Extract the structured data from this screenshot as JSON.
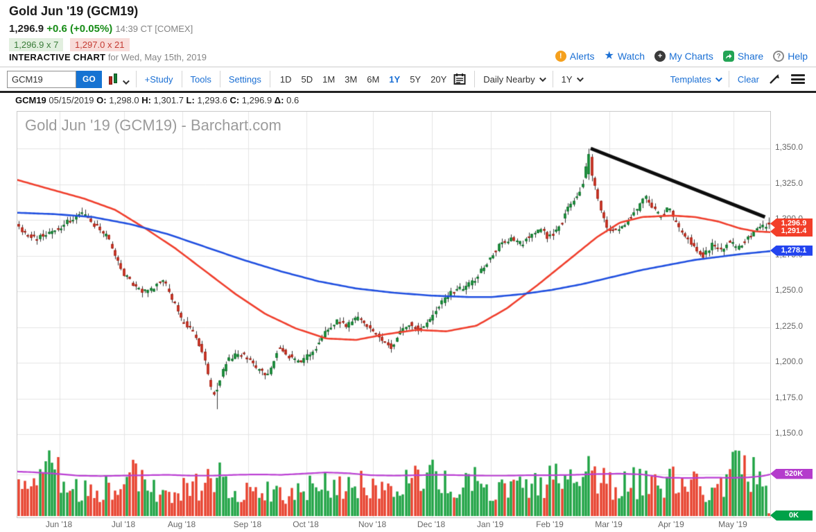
{
  "header": {
    "title": "Gold Jun '19 (GCM19)",
    "last_price": "1,296.9",
    "change": "+0.6 (+0.05%)",
    "time_exchange": "14:39 CT [COMEX]",
    "bid_size": "1,296.9 x 7",
    "ask_size": "1,297.0 x 21",
    "banner_label": "INTERACTIVE CHART",
    "banner_date": "for Wed, May 15th, 2019",
    "links": {
      "alerts": "Alerts",
      "watch": "Watch",
      "my_charts": "My Charts",
      "share": "Share",
      "help": "Help"
    }
  },
  "toolbar": {
    "symbol_value": "GCM19",
    "go_label": "GO",
    "study_label": "+Study",
    "tools_label": "Tools",
    "settings_label": "Settings",
    "ranges": [
      "1D",
      "5D",
      "1M",
      "3M",
      "6M",
      "1Y",
      "5Y",
      "20Y"
    ],
    "active_range": "1Y",
    "frequency_value": "Daily Nearby",
    "span_value": "1Y",
    "templates_label": "Templates",
    "clear_label": "Clear"
  },
  "ohlc_row": {
    "symbol": "GCM19",
    "date": "05/15/2019",
    "o_label": "O:",
    "o": "1,298.0",
    "h_label": "H:",
    "h": "1,301.7",
    "l_label": "L:",
    "l": "1,293.6",
    "c_label": "C:",
    "c": "1,296.9",
    "d_label": "Δ:",
    "d": "0.6"
  },
  "chart_data": {
    "type": "candlestick",
    "watermark": "Gold Jun '19 (GCM19) - Barchart.com",
    "symbol": "GCM19",
    "session_date": "05/15/2019",
    "last_ohlc": {
      "open": 1298.0,
      "high": 1301.7,
      "low": 1293.6,
      "close": 1296.9,
      "change": 0.6
    },
    "y_axis": {
      "tick_values": [
        1350,
        1325,
        1300,
        1275,
        1250,
        1225,
        1200,
        1175,
        1150
      ],
      "tick_labels": [
        "1,350.0",
        "1,325.0",
        "1,300.0",
        "1,275.0",
        "1,250.0",
        "1,225.0",
        "1,200.0",
        "1,175.0",
        "1,150.0"
      ]
    },
    "x_axis": {
      "labels": [
        "Jun '18",
        "Jul '18",
        "Aug '18",
        "Sep '18",
        "Oct '18",
        "Nov '18",
        "Dec '18",
        "Jan '19",
        "Feb '19",
        "Mar '19",
        "Apr '19",
        "May '19"
      ],
      "fracs": [
        0.0562,
        0.1418,
        0.2192,
        0.3066,
        0.384,
        0.4724,
        0.5507,
        0.629,
        0.7081,
        0.7864,
        0.8692,
        0.9512
      ]
    },
    "num_candles": 251,
    "price_path": [
      [
        0.0,
        1297
      ],
      [
        0.01,
        1291
      ],
      [
        0.025,
        1287
      ],
      [
        0.04,
        1291
      ],
      [
        0.056,
        1294
      ],
      [
        0.07,
        1300
      ],
      [
        0.088,
        1305
      ],
      [
        0.1,
        1298
      ],
      [
        0.12,
        1288
      ],
      [
        0.142,
        1263
      ],
      [
        0.16,
        1252
      ],
      [
        0.176,
        1249
      ],
      [
        0.194,
        1259
      ],
      [
        0.21,
        1242
      ],
      [
        0.219,
        1230
      ],
      [
        0.235,
        1222
      ],
      [
        0.248,
        1207
      ],
      [
        0.262,
        1176
      ],
      [
        0.27,
        1188
      ],
      [
        0.28,
        1201
      ],
      [
        0.295,
        1207
      ],
      [
        0.307,
        1204
      ],
      [
        0.32,
        1196
      ],
      [
        0.335,
        1191
      ],
      [
        0.35,
        1212
      ],
      [
        0.362,
        1205
      ],
      [
        0.375,
        1200
      ],
      [
        0.384,
        1203
      ],
      [
        0.398,
        1210
      ],
      [
        0.412,
        1222
      ],
      [
        0.428,
        1230
      ],
      [
        0.44,
        1226
      ],
      [
        0.455,
        1232
      ],
      [
        0.472,
        1224
      ],
      [
        0.488,
        1215
      ],
      [
        0.5,
        1211
      ],
      [
        0.512,
        1223
      ],
      [
        0.525,
        1227
      ],
      [
        0.538,
        1222
      ],
      [
        0.551,
        1230
      ],
      [
        0.565,
        1242
      ],
      [
        0.58,
        1250
      ],
      [
        0.595,
        1252
      ],
      [
        0.61,
        1258
      ],
      [
        0.629,
        1272
      ],
      [
        0.645,
        1283
      ],
      [
        0.66,
        1288
      ],
      [
        0.672,
        1283
      ],
      [
        0.685,
        1289
      ],
      [
        0.7,
        1293
      ],
      [
        0.708,
        1287
      ],
      [
        0.722,
        1294
      ],
      [
        0.735,
        1308
      ],
      [
        0.748,
        1318
      ],
      [
        0.755,
        1325
      ],
      [
        0.761,
        1344
      ],
      [
        0.768,
        1330
      ],
      [
        0.775,
        1315
      ],
      [
        0.786,
        1295
      ],
      [
        0.8,
        1292
      ],
      [
        0.815,
        1300
      ],
      [
        0.828,
        1308
      ],
      [
        0.838,
        1316
      ],
      [
        0.848,
        1308
      ],
      [
        0.858,
        1302
      ],
      [
        0.869,
        1309
      ],
      [
        0.88,
        1296
      ],
      [
        0.893,
        1288
      ],
      [
        0.905,
        1280
      ],
      [
        0.915,
        1275
      ],
      [
        0.928,
        1283
      ],
      [
        0.938,
        1278
      ],
      [
        0.95,
        1285
      ],
      [
        0.962,
        1280
      ],
      [
        0.975,
        1287
      ],
      [
        0.988,
        1293
      ],
      [
        1.0,
        1296.9
      ]
    ],
    "year_high": {
      "frac": 0.7615,
      "price": 1349.8
    },
    "year_low": {
      "frac": 0.262,
      "price": 1167.5
    },
    "ma_fast_red": [
      [
        0,
        1328
      ],
      [
        0.04,
        1322
      ],
      [
        0.088,
        1315
      ],
      [
        0.13,
        1307
      ],
      [
        0.17,
        1294
      ],
      [
        0.21,
        1280
      ],
      [
        0.25,
        1264
      ],
      [
        0.29,
        1248
      ],
      [
        0.33,
        1234
      ],
      [
        0.37,
        1224
      ],
      [
        0.41,
        1217
      ],
      [
        0.45,
        1216
      ],
      [
        0.49,
        1220
      ],
      [
        0.53,
        1223
      ],
      [
        0.57,
        1222
      ],
      [
        0.61,
        1226
      ],
      [
        0.65,
        1238
      ],
      [
        0.69,
        1254
      ],
      [
        0.73,
        1271
      ],
      [
        0.77,
        1288
      ],
      [
        0.8,
        1298
      ],
      [
        0.83,
        1302
      ],
      [
        0.87,
        1303
      ],
      [
        0.9,
        1302
      ],
      [
        0.93,
        1299
      ],
      [
        0.96,
        1294
      ],
      [
        0.98,
        1292
      ],
      [
        1.0,
        1291.4
      ]
    ],
    "ma_slow_blue": [
      [
        0,
        1305
      ],
      [
        0.05,
        1304
      ],
      [
        0.1,
        1302
      ],
      [
        0.15,
        1297
      ],
      [
        0.2,
        1290
      ],
      [
        0.25,
        1281
      ],
      [
        0.3,
        1272
      ],
      [
        0.35,
        1264
      ],
      [
        0.4,
        1257
      ],
      [
        0.45,
        1252
      ],
      [
        0.5,
        1249
      ],
      [
        0.55,
        1247
      ],
      [
        0.6,
        1246
      ],
      [
        0.63,
        1246
      ],
      [
        0.67,
        1248
      ],
      [
        0.71,
        1251
      ],
      [
        0.75,
        1255
      ],
      [
        0.79,
        1260
      ],
      [
        0.83,
        1265
      ],
      [
        0.87,
        1269
      ],
      [
        0.9,
        1272
      ],
      [
        0.93,
        1274
      ],
      [
        0.96,
        1276
      ],
      [
        1.0,
        1278.1
      ]
    ],
    "open_interest_k": [
      [
        0,
        555
      ],
      [
        0.02,
        548
      ],
      [
        0.05,
        530
      ],
      [
        0.08,
        505
      ],
      [
        0.11,
        500
      ],
      [
        0.14,
        505
      ],
      [
        0.17,
        510
      ],
      [
        0.2,
        515
      ],
      [
        0.23,
        505
      ],
      [
        0.26,
        505
      ],
      [
        0.29,
        515
      ],
      [
        0.32,
        520
      ],
      [
        0.35,
        515
      ],
      [
        0.38,
        530
      ],
      [
        0.41,
        545
      ],
      [
        0.44,
        535
      ],
      [
        0.47,
        510
      ],
      [
        0.5,
        505
      ],
      [
        0.53,
        510
      ],
      [
        0.56,
        515
      ],
      [
        0.59,
        510
      ],
      [
        0.62,
        505
      ],
      [
        0.65,
        505
      ],
      [
        0.68,
        510
      ],
      [
        0.71,
        510
      ],
      [
        0.74,
        515
      ],
      [
        0.77,
        525
      ],
      [
        0.8,
        530
      ],
      [
        0.83,
        520
      ],
      [
        0.86,
        480
      ],
      [
        0.89,
        475
      ],
      [
        0.92,
        480
      ],
      [
        0.95,
        478
      ],
      [
        0.97,
        482
      ],
      [
        0.99,
        500
      ],
      [
        1.0,
        520
      ]
    ],
    "volume_envelope_k": [
      [
        0,
        340
      ],
      [
        0.02,
        420
      ],
      [
        0.042,
        760
      ],
      [
        0.06,
        380
      ],
      [
        0.08,
        300
      ],
      [
        0.1,
        330
      ],
      [
        0.12,
        380
      ],
      [
        0.14,
        300
      ],
      [
        0.155,
        560
      ],
      [
        0.17,
        330
      ],
      [
        0.19,
        300
      ],
      [
        0.21,
        320
      ],
      [
        0.23,
        350
      ],
      [
        0.25,
        400
      ],
      [
        0.262,
        520
      ],
      [
        0.28,
        380
      ],
      [
        0.3,
        330
      ],
      [
        0.34,
        300
      ],
      [
        0.38,
        300
      ],
      [
        0.4,
        420
      ],
      [
        0.405,
        640
      ],
      [
        0.42,
        380
      ],
      [
        0.44,
        400
      ],
      [
        0.46,
        380
      ],
      [
        0.48,
        340
      ],
      [
        0.5,
        360
      ],
      [
        0.52,
        420
      ],
      [
        0.535,
        560
      ],
      [
        0.55,
        480
      ],
      [
        0.57,
        380
      ],
      [
        0.59,
        340
      ],
      [
        0.61,
        420
      ],
      [
        0.63,
        330
      ],
      [
        0.65,
        300
      ],
      [
        0.67,
        340
      ],
      [
        0.69,
        380
      ],
      [
        0.71,
        480
      ],
      [
        0.72,
        560
      ],
      [
        0.74,
        440
      ],
      [
        0.76,
        500
      ],
      [
        0.78,
        420
      ],
      [
        0.8,
        380
      ],
      [
        0.82,
        420
      ],
      [
        0.84,
        380
      ],
      [
        0.86,
        440
      ],
      [
        0.88,
        420
      ],
      [
        0.9,
        380
      ],
      [
        0.92,
        340
      ],
      [
        0.94,
        360
      ],
      [
        0.955,
        800
      ],
      [
        0.97,
        480
      ],
      [
        0.985,
        560
      ],
      [
        0.995,
        420
      ],
      [
        1.0,
        5
      ]
    ],
    "trendline": {
      "points": [
        [
          0.7615,
          1350
        ],
        [
          0.993,
          1302
        ]
      ],
      "color": "#0d0d0d"
    },
    "tags": {
      "last": {
        "text": "1,296.9",
        "value": 1296.9,
        "color": "#f23e29"
      },
      "ma_fast": {
        "text": "1,291.4",
        "value": 1291.4,
        "color": "#f23e29"
      },
      "ma_slow": {
        "text": "1,278.1",
        "value": 1278.1,
        "color": "#2344ef"
      },
      "open_interest": {
        "text": "520K",
        "value_k": 520,
        "color": "#b43ccc"
      },
      "volume": {
        "text": "0K",
        "value_k": 0,
        "color": "#00a148"
      }
    },
    "colors": {
      "up_fill": "#1ea344",
      "up_stroke": "#0c6a27",
      "down_fill": "#e7402d",
      "down_stroke": "#99190e",
      "wick": "#333333",
      "ma_fast": "#f0402e",
      "ma_slow": "#2150e0",
      "open_interest": "#bb3fd4",
      "grid": "#e5e5e5",
      "border": "#c9c9c9"
    },
    "legend_position": "none",
    "grid": true,
    "seed": 11
  }
}
